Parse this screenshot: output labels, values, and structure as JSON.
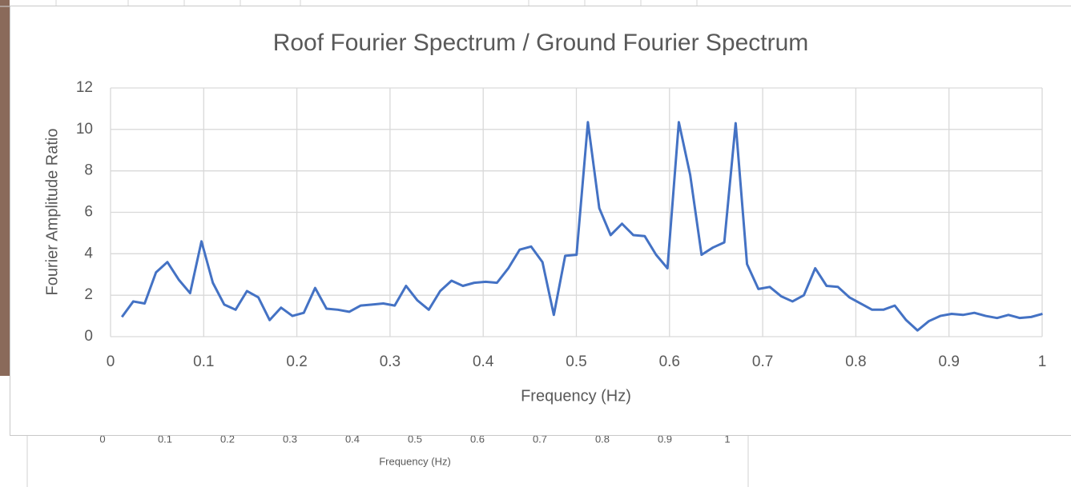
{
  "chart_data": {
    "type": "line",
    "title": "Roof Fourier Spectrum / Ground Fourier Spectrum",
    "xlabel": "Frequency (Hz)",
    "ylabel": "Fourier Amplitude Ratio",
    "color": "#4472c4",
    "grid": true,
    "xlim": [
      0,
      1
    ],
    "ylim": [
      0,
      12
    ],
    "xticks": [
      0,
      0.1,
      0.2,
      0.3,
      0.4,
      0.5,
      0.6,
      0.7,
      0.8,
      0.9,
      1
    ],
    "yticks": [
      0,
      2,
      4,
      6,
      8,
      10,
      12
    ],
    "x": [
      0.0122,
      0.0244,
      0.0366,
      0.0488,
      0.061,
      0.0732,
      0.0854,
      0.0976,
      0.1098,
      0.122,
      0.1342,
      0.1464,
      0.1586,
      0.1708,
      0.183,
      0.1952,
      0.2074,
      0.2196,
      0.2318,
      0.244,
      0.2562,
      0.2684,
      0.2806,
      0.2928,
      0.305,
      0.3172,
      0.3294,
      0.3416,
      0.3538,
      0.366,
      0.3782,
      0.3904,
      0.4026,
      0.4148,
      0.427,
      0.4392,
      0.4514,
      0.4636,
      0.4758,
      0.488,
      0.5002,
      0.5124,
      0.5246,
      0.5368,
      0.549,
      0.5612,
      0.5734,
      0.5856,
      0.5978,
      0.61,
      0.6222,
      0.6344,
      0.6466,
      0.6588,
      0.671,
      0.6832,
      0.6954,
      0.7076,
      0.7198,
      0.732,
      0.7442,
      0.7564,
      0.7686,
      0.7808,
      0.793,
      0.8052,
      0.8174,
      0.8296,
      0.8418,
      0.854,
      0.8662,
      0.8784,
      0.8906,
      0.9028,
      0.915,
      0.9272,
      0.9394,
      0.9516,
      0.9638,
      0.976,
      0.9882,
      1.0004
    ],
    "values": [
      0.95,
      1.7,
      1.6,
      3.1,
      3.6,
      2.75,
      2.1,
      4.6,
      2.6,
      1.55,
      1.3,
      2.2,
      1.9,
      0.8,
      1.4,
      1.0,
      1.15,
      2.35,
      1.35,
      1.3,
      1.2,
      1.5,
      1.55,
      1.6,
      1.5,
      2.45,
      1.75,
      1.3,
      2.2,
      2.7,
      2.45,
      2.6,
      2.65,
      2.6,
      3.3,
      4.2,
      4.35,
      3.6,
      1.05,
      3.9,
      3.95,
      10.35,
      6.2,
      4.9,
      5.45,
      4.9,
      4.85,
      3.95,
      3.3,
      10.35,
      7.8,
      3.95,
      4.3,
      4.55,
      10.3,
      3.5,
      2.3,
      2.4,
      1.95,
      1.7,
      2.0,
      3.3,
      2.45,
      2.4,
      1.9,
      1.6,
      1.3,
      1.3,
      1.5,
      0.8,
      0.3,
      0.75,
      1.0,
      1.1,
      1.05,
      1.15,
      1.0,
      0.9,
      1.05,
      0.9,
      0.95,
      1.1
    ]
  },
  "background_chart": {
    "xlabel": "Frequency (Hz)",
    "xticks": [
      0,
      0.1,
      0.2,
      0.3,
      0.4,
      0.5,
      0.6,
      0.7,
      0.8,
      0.9,
      1
    ]
  }
}
